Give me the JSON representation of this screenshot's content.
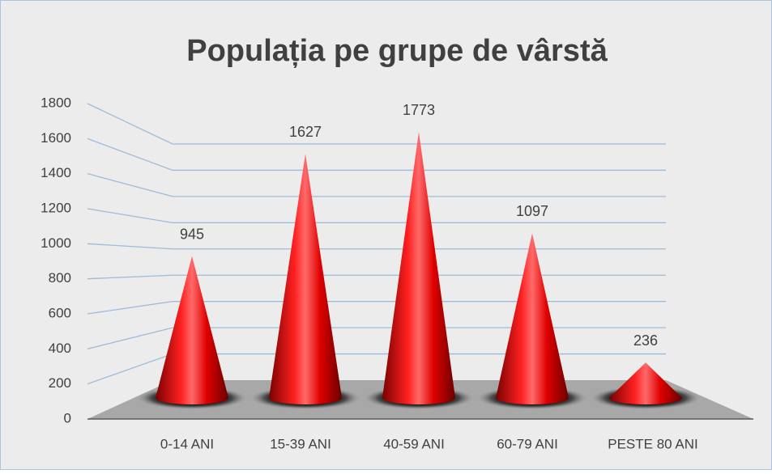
{
  "chart_data": {
    "type": "cone",
    "title": "Populația pe grupe de vârstă",
    "categories": [
      "0-14 ANI",
      "15-39 ANI",
      "40-59 ANI",
      "60-79 ANI",
      "PESTE 80 ANI"
    ],
    "values": [
      945,
      1627,
      1773,
      1097,
      236
    ],
    "color": "#e00000",
    "ylim": [
      0,
      1800
    ],
    "yticks": [
      0,
      200,
      400,
      600,
      800,
      1000,
      1200,
      1400,
      1600,
      1800
    ],
    "grid": true
  }
}
